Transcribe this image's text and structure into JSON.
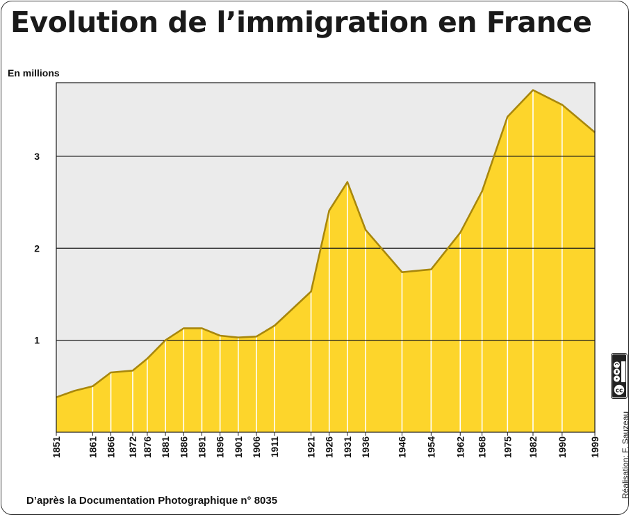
{
  "title": "Evolution de l’immigration en France",
  "source_note": "D’après la Documentation Photographique n° 8035",
  "credit": "Réalisation: F. Sauzeau",
  "license_icon": "cc-by-nc-sa-icon",
  "colors": {
    "fill": "#FDD52B",
    "line": "#A8870C",
    "plot_bg": "#EBEBEB",
    "grid": "#1a1a1a",
    "vertical": "#ffffff"
  },
  "chart_data": {
    "type": "area",
    "title": "Evolution de l’immigration en France",
    "ylabel": "En millions",
    "xlabel": "",
    "ylim": [
      0,
      3.8
    ],
    "yticks": [
      1,
      2,
      3
    ],
    "grid": "horizontal",
    "x": [
      1851,
      1861,
      1866,
      1872,
      1876,
      1881,
      1886,
      1891,
      1896,
      1901,
      1906,
      1911,
      1921,
      1926,
      1931,
      1936,
      1946,
      1954,
      1962,
      1968,
      1975,
      1982,
      1990,
      1999
    ],
    "x_labels": [
      "1851",
      "1861",
      "1866",
      "1872",
      "1876",
      "1881",
      "1886",
      "1891",
      "1896",
      "1901",
      "1906",
      "1911",
      "1921",
      "1926",
      "1931",
      "1936",
      "1946",
      "1954",
      "1962",
      "1968",
      "1975",
      "1982",
      "1990",
      "1999"
    ],
    "extra_points": [
      {
        "x": 1856,
        "y": 0.45
      }
    ],
    "values": [
      0.38,
      0.5,
      0.65,
      0.67,
      0.8,
      1.0,
      1.13,
      1.13,
      1.05,
      1.03,
      1.04,
      1.16,
      1.53,
      2.41,
      2.72,
      2.2,
      1.74,
      1.77,
      2.17,
      2.62,
      3.43,
      3.72,
      3.56,
      3.26
    ]
  }
}
